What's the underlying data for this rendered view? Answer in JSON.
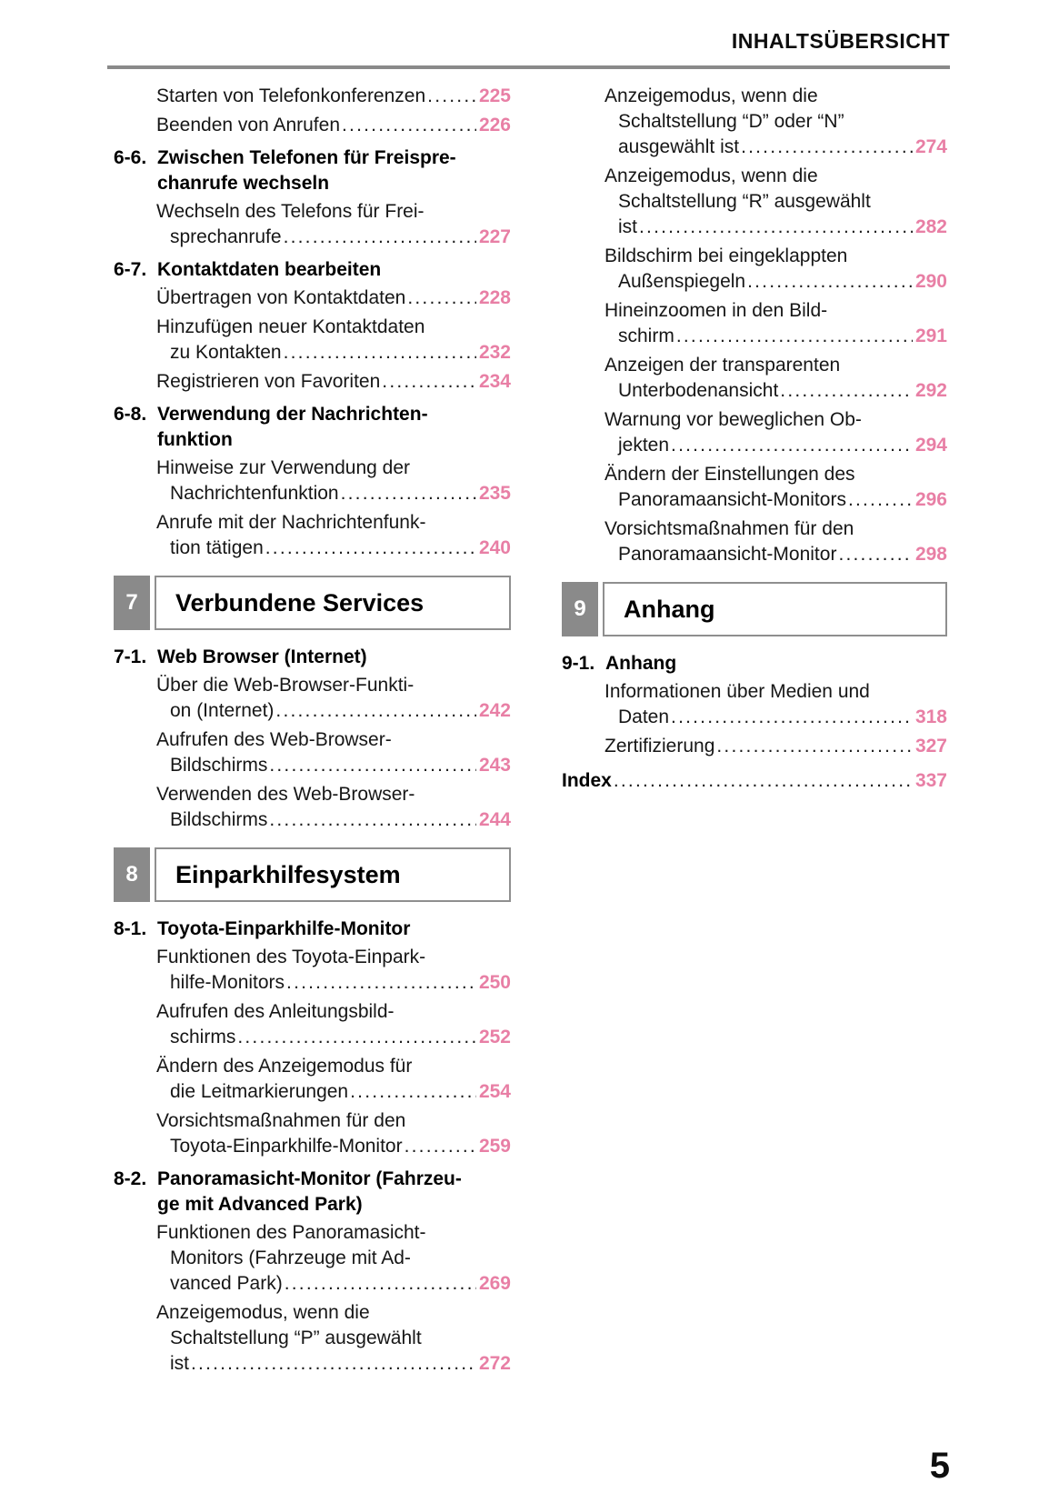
{
  "header": {
    "title": "INHALTSÜBERSICHT"
  },
  "page_number": "5",
  "colors": {
    "accent_pink": "#e87fa5",
    "section_box_gray": "#8a8a8a",
    "rule_gray": "#8a8a8a"
  },
  "columns": {
    "left": [
      {
        "type": "entry",
        "lines": [
          "Starten von Telefonkonferenzen"
        ],
        "page": "225"
      },
      {
        "type": "entry",
        "lines": [
          "Beenden von Anrufen"
        ],
        "page": "226"
      },
      {
        "type": "chapter",
        "num": "6-6.",
        "lines": [
          "Zwischen Telefonen für Freispre-",
          "chanrufe wechseln"
        ]
      },
      {
        "type": "entry",
        "lines": [
          "Wechseln des Telefons für Frei-",
          "sprechanrufe"
        ],
        "page": "227"
      },
      {
        "type": "chapter",
        "num": "6-7.",
        "lines": [
          "Kontaktdaten bearbeiten"
        ]
      },
      {
        "type": "entry",
        "lines": [
          "Übertragen von Kontaktdaten"
        ],
        "page": "228"
      },
      {
        "type": "entry",
        "lines": [
          "Hinzufügen neuer Kontaktdaten",
          "zu Kontakten"
        ],
        "page": "232"
      },
      {
        "type": "entry",
        "lines": [
          "Registrieren von Favoriten"
        ],
        "page": "234"
      },
      {
        "type": "chapter",
        "num": "6-8.",
        "lines": [
          "Verwendung der Nachrichten-",
          "funktion"
        ]
      },
      {
        "type": "entry",
        "lines": [
          "Hinweise zur Verwendung der",
          "Nachrichtenfunktion"
        ],
        "page": "235"
      },
      {
        "type": "entry",
        "lines": [
          "Anrufe mit der Nachrichtenfunk-",
          "tion tätigen"
        ],
        "page": "240"
      },
      {
        "type": "section",
        "num": "7",
        "title": "Verbundene Services"
      },
      {
        "type": "chapter",
        "num": "7-1.",
        "lines": [
          "Web Browser (Internet)"
        ]
      },
      {
        "type": "entry",
        "lines": [
          "Über die Web-Browser-Funkti-",
          "on (Internet)"
        ],
        "page": "242"
      },
      {
        "type": "entry",
        "lines": [
          "Aufrufen des Web-Browser-",
          "Bildschirms"
        ],
        "page": "243"
      },
      {
        "type": "entry",
        "lines": [
          "Verwenden des Web-Browser-",
          "Bildschirms"
        ],
        "page": "244"
      },
      {
        "type": "section",
        "num": "8",
        "title": "Einparkhilfesystem"
      },
      {
        "type": "chapter",
        "num": "8-1.",
        "lines": [
          "Toyota-Einparkhilfe-Monitor"
        ]
      },
      {
        "type": "entry",
        "lines": [
          "Funktionen des Toyota-Einpark-",
          "hilfe-Monitors"
        ],
        "page": "250"
      },
      {
        "type": "entry",
        "lines": [
          "Aufrufen des Anleitungsbild-",
          "schirms"
        ],
        "page": "252"
      },
      {
        "type": "entry",
        "lines": [
          "Ändern des Anzeigemodus für",
          "die Leitmarkierungen"
        ],
        "page": "254"
      },
      {
        "type": "entry",
        "lines": [
          "Vorsichtsmaßnahmen für den",
          "Toyota-Einparkhilfe-Monitor"
        ],
        "page": "259"
      },
      {
        "type": "chapter",
        "num": "8-2.",
        "lines": [
          "Panoramasicht-Monitor (Fahrzeu-",
          "ge mit Advanced Park)"
        ]
      },
      {
        "type": "entry",
        "lines": [
          "Funktionen des Panoramasicht-",
          "Monitors (Fahrzeuge mit Ad-",
          "vanced Park)"
        ],
        "page": "269"
      },
      {
        "type": "entry",
        "lines": [
          "Anzeigemodus, wenn die",
          "Schaltstellung “P” ausgewählt",
          "ist"
        ],
        "page": "272"
      }
    ],
    "right": [
      {
        "type": "entry",
        "lines": [
          "Anzeigemodus, wenn die",
          "Schaltstellung “D” oder “N”",
          "ausgewählt ist"
        ],
        "page": "274"
      },
      {
        "type": "entry",
        "lines": [
          "Anzeigemodus, wenn die",
          "Schaltstellung “R” ausgewählt",
          "ist"
        ],
        "page": "282"
      },
      {
        "type": "entry",
        "lines": [
          "Bildschirm bei eingeklappten",
          "Außenspiegeln"
        ],
        "page": "290"
      },
      {
        "type": "entry",
        "lines": [
          "Hineinzoomen in den Bild-",
          "schirm"
        ],
        "page": "291"
      },
      {
        "type": "entry",
        "lines": [
          "Anzeigen der transparenten",
          "Unterbodenansicht"
        ],
        "page": "292"
      },
      {
        "type": "entry",
        "lines": [
          "Warnung vor beweglichen Ob-",
          "jekten"
        ],
        "page": "294"
      },
      {
        "type": "entry",
        "lines": [
          "Ändern der Einstellungen des",
          "Panoramaansicht-Monitors"
        ],
        "page": "296"
      },
      {
        "type": "entry",
        "lines": [
          "Vorsichtsmaßnahmen für den",
          "Panoramaansicht-Monitor"
        ],
        "page": "298"
      },
      {
        "type": "section",
        "num": "9",
        "title": "Anhang"
      },
      {
        "type": "chapter",
        "num": "9-1.",
        "lines": [
          "Anhang"
        ]
      },
      {
        "type": "entry",
        "lines": [
          "Informationen über Medien und",
          "Daten"
        ],
        "page": "318"
      },
      {
        "type": "entry",
        "lines": [
          "Zertifizierung"
        ],
        "page": "327"
      },
      {
        "type": "index",
        "label": "Index",
        "page": "337"
      }
    ]
  }
}
